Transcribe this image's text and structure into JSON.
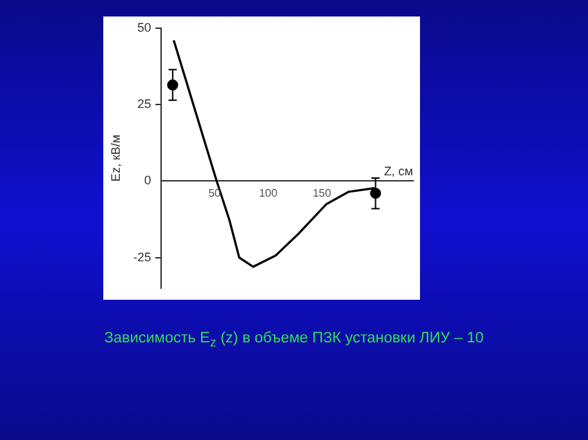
{
  "chart_data": {
    "type": "line",
    "xlabel": "Z, см",
    "ylabel": "Ez, кВ/м",
    "annotations": [
      "Зависимость E$_{z}$ (z) в объеме ПЗК установки ЛИУ – 10"
    ],
    "xlim": [
      0,
      235
    ],
    "ylim": [
      -35,
      50
    ],
    "xticks": [
      50,
      100,
      150
    ],
    "yticks": [
      -25,
      0,
      25,
      50
    ],
    "grid": false,
    "legend": false,
    "series": [
      {
        "type": "line",
        "color": "#000000",
        "marker": "none",
        "x": [
          12,
          52,
          64,
          73,
          86,
          107,
          128,
          154,
          175,
          199
        ],
        "values": [
          46,
          0,
          -12.9,
          -25,
          -28,
          -24.3,
          -17.3,
          -7.6,
          -3.5,
          -2.3
        ]
      },
      {
        "type": "scatter",
        "color": "#000000",
        "marker": "circle",
        "x": [
          11,
          200
        ],
        "values": [
          31.4,
          -4
        ],
        "errors": [
          5,
          5
        ]
      }
    ]
  }
}
